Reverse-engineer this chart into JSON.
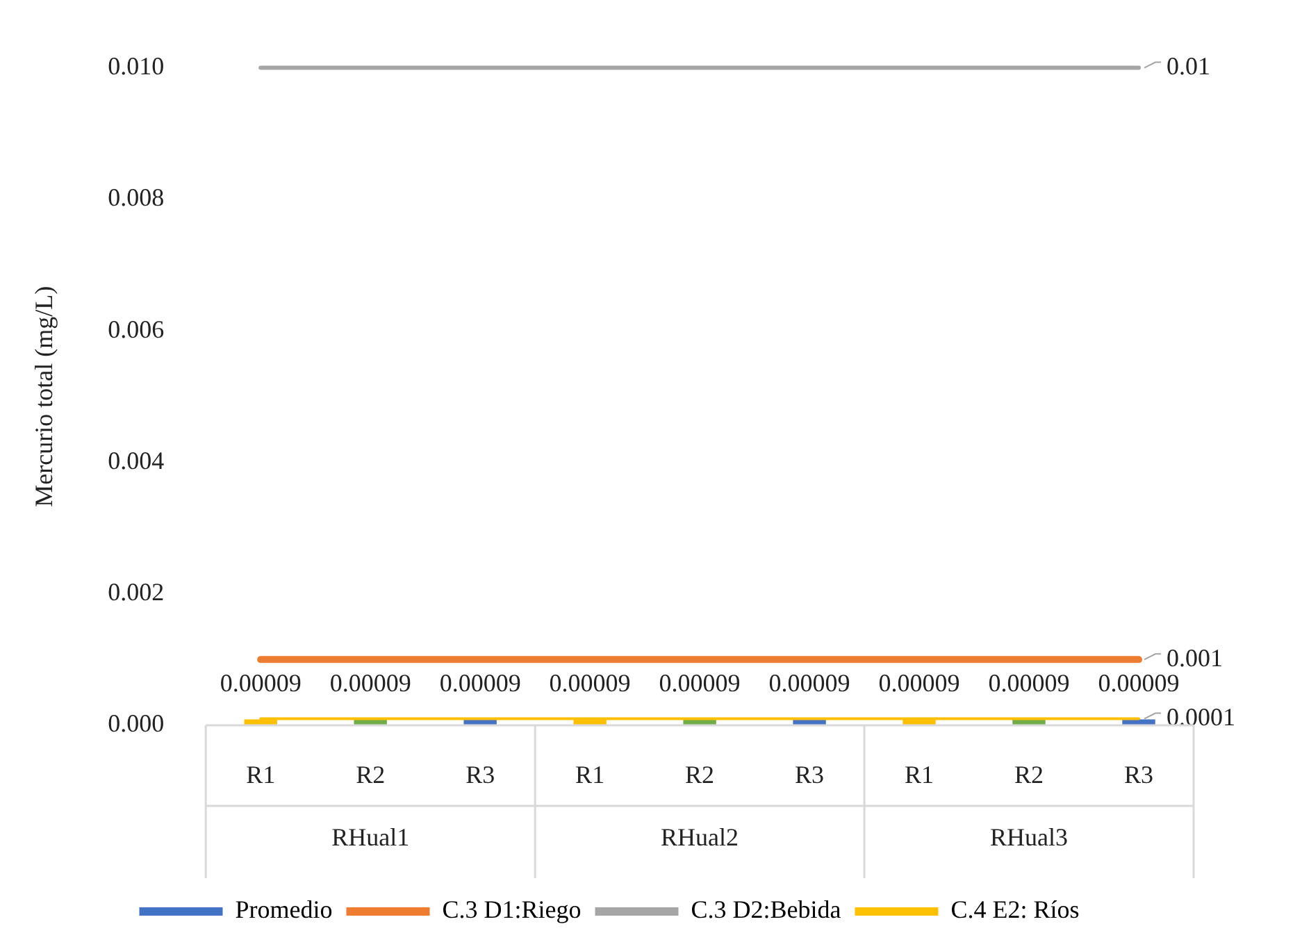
{
  "chart_data": {
    "type": "bar",
    "ylabel": "Mercurio total (mg/L)",
    "categories": [
      "R1",
      "R2",
      "R3",
      "R1",
      "R2",
      "R3",
      "R1",
      "R2",
      "R3"
    ],
    "ylim": [
      0,
      0.01
    ],
    "yticks": [
      {
        "value": 0,
        "label": "0.000"
      },
      {
        "value": 0.002,
        "label": "0.002"
      },
      {
        "value": 0.004,
        "label": "0.004"
      },
      {
        "value": 0.006,
        "label": "0.006"
      },
      {
        "value": 0.008,
        "label": "0.008"
      },
      {
        "value": 0.01,
        "label": "0.010"
      }
    ],
    "grid": false,
    "legend": "bottom",
    "annotations": [
      "RHual1",
      "RHual2",
      "RHual3"
    ],
    "series": [
      {
        "name": "Promedio",
        "color": "#4472c4",
        "colors": [
          "#ffc000",
          "#70ad47",
          "#4472c4",
          "#ffc000",
          "#70ad47",
          "#4472c4",
          "#ffc000",
          "#70ad47",
          "#4472c4"
        ],
        "values": [
          9e-05,
          9e-05,
          9e-05,
          9e-05,
          9e-05,
          9e-05,
          9e-05,
          9e-05,
          9e-05
        ],
        "value_labels": [
          "0.00009",
          "0.00009",
          "0.00009",
          "0.00009",
          "0.00009",
          "0.00009",
          "0.00009",
          "0.00009",
          "0.00009"
        ]
      },
      {
        "name": "C.3 D1:Riego",
        "type": "line",
        "color": "#ed7d31",
        "values": [
          0.001,
          0.001,
          0.001,
          0.001,
          0.001,
          0.001,
          0.001,
          0.001,
          0.001
        ],
        "value_labels": [
          null,
          null,
          null,
          null,
          null,
          null,
          null,
          null,
          "0.001"
        ]
      },
      {
        "name": "C.3 D2:Bebida",
        "type": "line",
        "color": "#a5a5a5",
        "values": [
          0.01,
          0.01,
          0.01,
          0.01,
          0.01,
          0.01,
          0.01,
          0.01,
          0.01
        ],
        "value_labels": [
          null,
          null,
          null,
          null,
          null,
          null,
          null,
          null,
          "0.01"
        ]
      },
      {
        "name": "C.4 E2: Ríos",
        "type": "line",
        "color": "#ffc000",
        "values": [
          0.0001,
          0.0001,
          0.0001,
          0.0001,
          0.0001,
          0.0001,
          0.0001,
          0.0001,
          0.0001
        ],
        "value_labels": [
          null,
          null,
          null,
          null,
          null,
          null,
          null,
          null,
          "0.0001"
        ]
      }
    ]
  }
}
